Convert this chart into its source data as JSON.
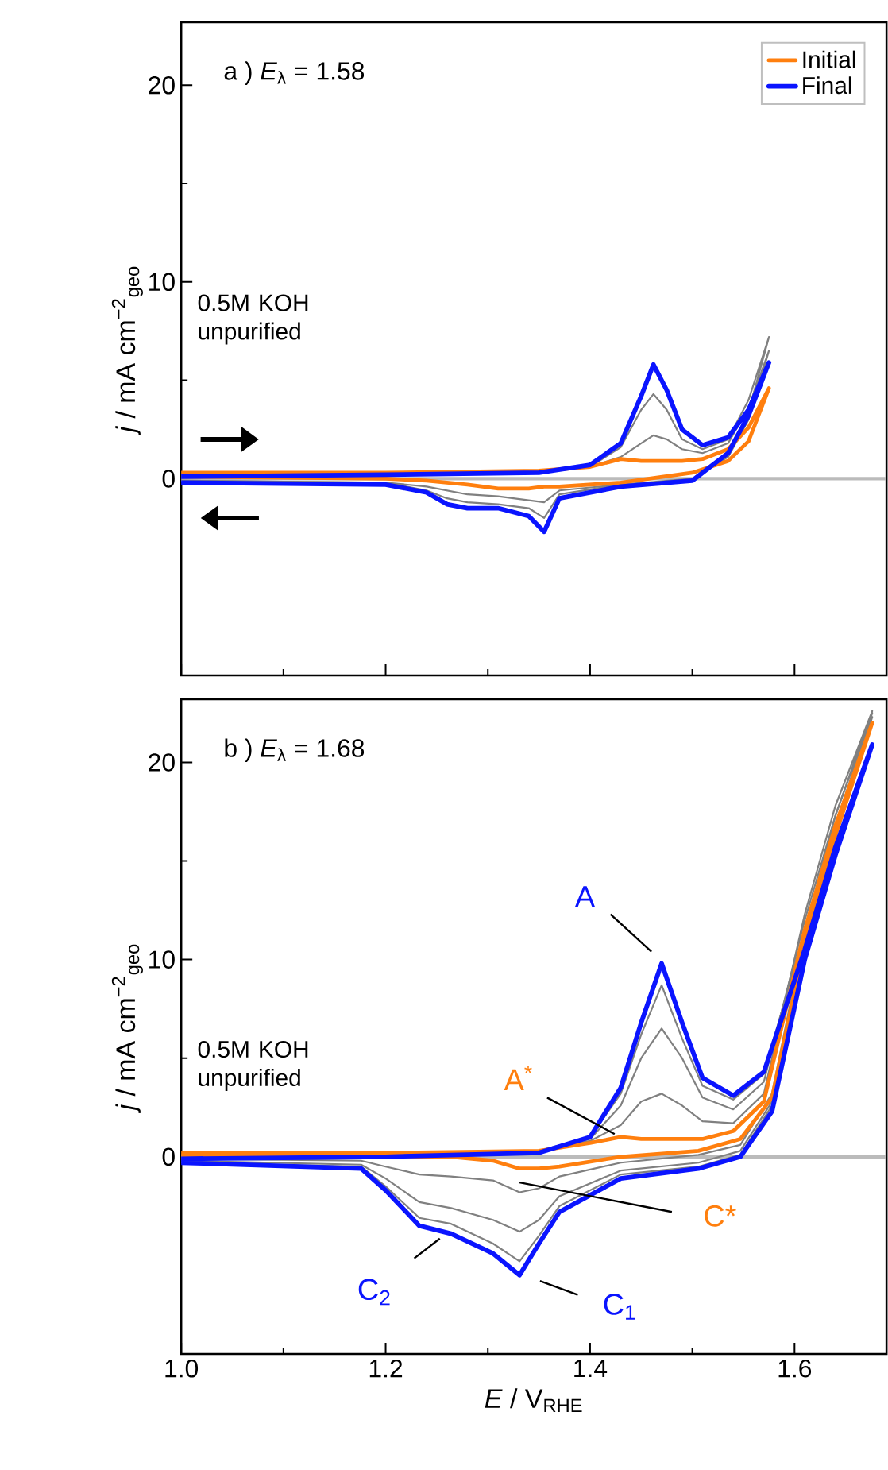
{
  "chart_data": [
    {
      "type": "line",
      "title": "a ) *E*$_{λ}$ =  1.58",
      "ylabel": "*j* / mA cm$^{−2}$$_{geo}$",
      "xlim": [
        1.0,
        1.69
      ],
      "ylim": [
        -10,
        23.2
      ],
      "xticks": [
        1.0,
        1.2,
        1.4,
        1.6
      ],
      "yticks": [
        0,
        10,
        20
      ],
      "tick_labels": "y",
      "legend": "top right",
      "annotations": [
        "0.5M KOH unpurified"
      ],
      "ref_lines": [
        {
          "axis": "y",
          "value": 0,
          "color": "#bbbbbb"
        }
      ],
      "series": [
        {
          "color": "#808080",
          "x": [
            1.0,
            1.2,
            1.35,
            1.4,
            1.43,
            1.45,
            1.462,
            1.475,
            1.49,
            1.51,
            1.535,
            1.555,
            1.575,
            1.555,
            1.535,
            1.5,
            1.43,
            1.37,
            1.355,
            1.34,
            1.31,
            1.28,
            1.26,
            1.24,
            1.2,
            1.0
          ],
          "values": [
            0.2,
            0.2,
            0.4,
            0.6,
            1.1,
            1.8,
            2.2,
            2.0,
            1.5,
            1.3,
            1.8,
            3.6,
            6.5,
            3.0,
            1.1,
            0.0,
            -0.3,
            -0.6,
            -1.2,
            -1.1,
            -0.9,
            -0.8,
            -0.6,
            -0.4,
            -0.2,
            -0.1
          ]
        },
        {
          "color": "#808080",
          "x": [
            1.0,
            1.2,
            1.35,
            1.4,
            1.43,
            1.45,
            1.462,
            1.475,
            1.49,
            1.51,
            1.535,
            1.555,
            1.575,
            1.555,
            1.535,
            1.5,
            1.43,
            1.37,
            1.355,
            1.34,
            1.31,
            1.28,
            1.26,
            1.24,
            1.2,
            1.0
          ],
          "values": [
            0.1,
            0.2,
            0.3,
            0.6,
            1.6,
            3.5,
            4.3,
            3.5,
            2.0,
            1.5,
            2.0,
            4.0,
            7.2,
            3.4,
            1.2,
            -0.1,
            -0.3,
            -0.8,
            -2.0,
            -1.5,
            -1.3,
            -1.2,
            -1.0,
            -0.6,
            -0.2,
            -0.1
          ]
        },
        {
          "name": "Initial",
          "color": "#ff7f0e",
          "x": [
            1.0,
            1.2,
            1.35,
            1.4,
            1.43,
            1.45,
            1.462,
            1.475,
            1.49,
            1.51,
            1.535,
            1.555,
            1.575,
            1.555,
            1.535,
            1.5,
            1.43,
            1.37,
            1.355,
            1.34,
            1.31,
            1.28,
            1.26,
            1.24,
            1.2,
            1.0
          ],
          "values": [
            0.3,
            0.3,
            0.4,
            0.6,
            1.0,
            0.9,
            0.9,
            0.9,
            0.9,
            1.0,
            1.5,
            2.6,
            4.6,
            1.9,
            0.9,
            0.3,
            -0.2,
            -0.4,
            -0.4,
            -0.5,
            -0.5,
            -0.3,
            -0.2,
            -0.1,
            0.0,
            0.1
          ]
        },
        {
          "name": "Final",
          "color": "#0a14ff",
          "x": [
            1.0,
            1.2,
            1.35,
            1.4,
            1.43,
            1.45,
            1.462,
            1.475,
            1.49,
            1.51,
            1.535,
            1.555,
            1.575,
            1.555,
            1.535,
            1.5,
            1.43,
            1.37,
            1.355,
            1.34,
            1.31,
            1.28,
            1.26,
            1.24,
            1.2,
            1.0
          ],
          "values": [
            0.1,
            0.2,
            0.3,
            0.7,
            1.8,
            4.2,
            5.8,
            4.5,
            2.5,
            1.7,
            2.1,
            3.5,
            5.9,
            3.2,
            1.3,
            -0.1,
            -0.4,
            -1.0,
            -2.7,
            -1.9,
            -1.5,
            -1.5,
            -1.3,
            -0.7,
            -0.3,
            -0.2
          ]
        }
      ]
    },
    {
      "type": "line",
      "title": "b ) *E*$_{λ}$ =  1.68",
      "xlabel": "*E* / V$_{RHE}$",
      "ylabel": "*j* / mA cm$^{−2}$$_{geo}$",
      "xlim": [
        1.0,
        1.69
      ],
      "ylim": [
        -10,
        23.2
      ],
      "xticks": [
        {
          "value": 1.0,
          "label": "1.0"
        },
        1.2,
        1.4,
        1.6
      ],
      "yticks": [
        0,
        10,
        20
      ],
      "annotations": [
        "0.5M KOH unpurified",
        {
          "text": "A",
          "x": 1.47,
          "y": 9.8
        },
        {
          "text": "A$^{*}$",
          "x": 1.43,
          "y": 1.0
        },
        {
          "text": "C*",
          "x": 1.331,
          "y": -0.6
        },
        {
          "text": "C$_{1}$",
          "x": 1.331,
          "y": -6.0
        },
        {
          "text": "C$_{2}$",
          "x": 1.264,
          "y": -3.9
        }
      ],
      "ref_lines": [
        {
          "axis": "y",
          "value": 0,
          "color": "#bbbbbb"
        }
      ],
      "series": [
        {
          "color": "#808080",
          "x": [
            1.0,
            1.2,
            1.35,
            1.4,
            1.43,
            1.45,
            1.47,
            1.49,
            1.51,
            1.54,
            1.57,
            1.61,
            1.64,
            1.676,
            1.64,
            1.61,
            1.578,
            1.547,
            1.506,
            1.43,
            1.37,
            1.35,
            1.331,
            1.305,
            1.264,
            1.233,
            1.2,
            1.176,
            1.0
          ],
          "values": [
            0.1,
            0.2,
            0.3,
            0.8,
            1.6,
            2.8,
            3.2,
            2.6,
            1.8,
            1.7,
            3.2,
            12.3,
            17.8,
            22.6,
            17.3,
            11.4,
            3.2,
            0.6,
            0.1,
            -0.3,
            -1.0,
            -1.6,
            -1.8,
            -1.2,
            -1.0,
            -0.9,
            -0.5,
            -0.2,
            -0.1
          ]
        },
        {
          "color": "#808080",
          "x": [
            1.0,
            1.2,
            1.35,
            1.4,
            1.43,
            1.45,
            1.47,
            1.49,
            1.51,
            1.54,
            1.57,
            1.61,
            1.64,
            1.676,
            1.64,
            1.61,
            1.578,
            1.547,
            1.506,
            1.43,
            1.37,
            1.35,
            1.331,
            1.305,
            1.264,
            1.233,
            1.2,
            1.176,
            1.0
          ],
          "values": [
            0.0,
            0.1,
            0.3,
            0.9,
            2.6,
            5.0,
            6.5,
            5.0,
            3.0,
            2.4,
            3.8,
            12.0,
            17.3,
            22.5,
            16.8,
            11.0,
            2.8,
            0.3,
            -0.3,
            -0.7,
            -2.0,
            -3.2,
            -3.8,
            -3.2,
            -2.6,
            -2.3,
            -1.1,
            -0.4,
            -0.2
          ]
        },
        {
          "color": "#808080",
          "x": [
            1.0,
            1.2,
            1.35,
            1.4,
            1.43,
            1.45,
            1.47,
            1.49,
            1.51,
            1.54,
            1.57,
            1.61,
            1.64,
            1.676,
            1.64,
            1.61,
            1.578,
            1.547,
            1.506,
            1.43,
            1.37,
            1.35,
            1.331,
            1.305,
            1.264,
            1.233,
            1.2,
            1.176,
            1.0
          ],
          "values": [
            -0.1,
            0.0,
            0.3,
            1.0,
            3.2,
            6.2,
            8.7,
            6.0,
            3.6,
            2.9,
            4.2,
            11.5,
            16.8,
            22.3,
            16.3,
            10.6,
            2.6,
            0.1,
            -0.5,
            -0.9,
            -2.5,
            -4.0,
            -5.3,
            -4.4,
            -3.4,
            -3.1,
            -1.5,
            -0.5,
            -0.3
          ]
        },
        {
          "color": "#ff7f0e",
          "x": [
            1.0,
            1.2,
            1.35,
            1.4,
            1.43,
            1.45,
            1.47,
            1.49,
            1.51,
            1.54,
            1.57,
            1.61,
            1.64,
            1.676,
            1.64,
            1.61,
            1.578,
            1.547,
            1.506,
            1.43,
            1.37,
            1.35,
            1.331,
            1.305,
            1.264,
            1.233,
            1.2,
            1.176,
            1.0
          ],
          "values": [
            0.2,
            0.2,
            0.3,
            0.7,
            1.0,
            0.9,
            0.9,
            0.9,
            0.9,
            1.3,
            2.8,
            11.5,
            16.8,
            22.0,
            16.3,
            10.8,
            3.0,
            0.9,
            0.3,
            0.0,
            -0.5,
            -0.6,
            -0.6,
            -0.2,
            0.0,
            0.0,
            0.1,
            0.1,
            0.1
          ]
        },
        {
          "color": "#0a14ff",
          "x": [
            1.0,
            1.2,
            1.35,
            1.4,
            1.43,
            1.45,
            1.47,
            1.49,
            1.51,
            1.54,
            1.57,
            1.61,
            1.64,
            1.676,
            1.64,
            1.61,
            1.578,
            1.547,
            1.506,
            1.43,
            1.37,
            1.35,
            1.331,
            1.305,
            1.264,
            1.233,
            1.2,
            1.176,
            1.0
          ],
          "values": [
            -0.1,
            0.0,
            0.2,
            1.0,
            3.5,
            6.8,
            9.8,
            6.8,
            4.0,
            3.1,
            4.3,
            10.5,
            15.7,
            20.9,
            15.3,
            10.0,
            2.3,
            0.0,
            -0.6,
            -1.1,
            -2.8,
            -4.4,
            -6.0,
            -4.9,
            -3.9,
            -3.5,
            -1.7,
            -0.6,
            -0.3
          ]
        }
      ]
    }
  ]
}
